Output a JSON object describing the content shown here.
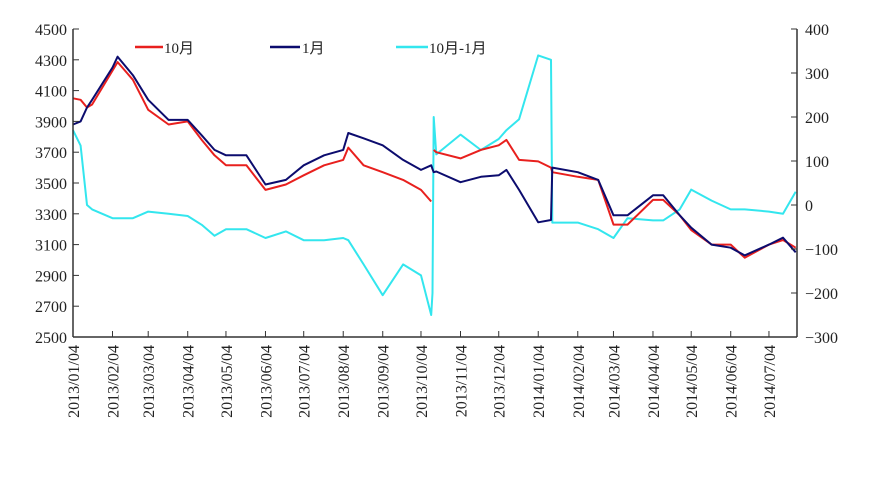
{
  "chart_data": {
    "type": "line",
    "title": "",
    "xlabel": "",
    "ylabel": "",
    "y2label": "",
    "ylim": [
      2500,
      4500
    ],
    "y2lim": [
      -300,
      400
    ],
    "xlim": [
      "2013-01-04",
      "2014-07-26"
    ],
    "grid": false,
    "legend_position": "top",
    "yticks": [
      2500,
      2700,
      2900,
      3100,
      3300,
      3500,
      3700,
      3900,
      4100,
      4300,
      4500
    ],
    "y2ticks": [
      -300,
      -200,
      -100,
      0,
      100,
      200,
      300,
      400
    ],
    "xtick_labels": [
      "2013/01/04",
      "2013/02/04",
      "2013/03/04",
      "2013/04/04",
      "2013/05/04",
      "2013/06/04",
      "2013/07/04",
      "2013/08/04",
      "2013/09/04",
      "2013/10/04",
      "2013/11/04",
      "2013/12/04",
      "2014/01/04",
      "2014/02/04",
      "2014/03/04",
      "2014/04/04",
      "2014/05/04",
      "2014/06/04",
      "2014/07/04"
    ],
    "x": [
      "2013-01-04",
      "2013-01-10",
      "2013-01-15",
      "2013-01-19",
      "2013-02-04",
      "2013-02-08",
      "2013-02-20",
      "2013-03-04",
      "2013-03-20",
      "2013-04-04",
      "2013-04-15",
      "2013-04-25",
      "2013-05-04",
      "2013-05-20",
      "2013-06-04",
      "2013-06-20",
      "2013-07-04",
      "2013-07-20",
      "2013-08-04",
      "2013-08-08",
      "2013-08-20",
      "2013-09-04",
      "2013-09-20",
      "2013-10-04",
      "2013-10-12",
      "2013-10-13",
      "2013-10-14",
      "2013-10-16",
      "2013-11-04",
      "2013-11-20",
      "2013-12-04",
      "2013-12-10",
      "2013-12-20",
      "2014-01-04",
      "2014-01-14",
      "2014-01-15",
      "2014-02-04",
      "2014-02-20",
      "2014-03-04",
      "2014-03-15",
      "2014-04-04",
      "2014-04-12",
      "2014-04-25",
      "2014-05-04",
      "2014-05-20",
      "2014-06-04",
      "2014-06-15",
      "2014-07-04",
      "2014-07-15",
      "2014-07-25"
    ],
    "series": [
      {
        "name": "10月",
        "axis": "left",
        "color": "#e8201e",
        "values": [
          4050,
          4040,
          3990,
          4010,
          4230,
          4285,
          4170,
          3975,
          3880,
          3900,
          3780,
          3680,
          3615,
          3615,
          3455,
          3490,
          3550,
          3615,
          3650,
          3730,
          3615,
          3570,
          3520,
          3455,
          3380,
          null,
          3715,
          3700,
          3660,
          3715,
          3745,
          3780,
          3650,
          3640,
          3600,
          3570,
          3540,
          3520,
          3230,
          3230,
          3390,
          3390,
          3290,
          3195,
          3100,
          3100,
          3015,
          3100,
          3130,
          3080
        ]
      },
      {
        "name": "1月",
        "axis": "left",
        "color": "#0c0c6e",
        "values": [
          3880,
          3900,
          3990,
          4040,
          4250,
          4320,
          4200,
          4040,
          3910,
          3910,
          3810,
          3715,
          3680,
          3680,
          3490,
          3520,
          3615,
          3680,
          3715,
          3825,
          3790,
          3745,
          3650,
          3585,
          3615,
          3590,
          3570,
          3575,
          3505,
          3540,
          3550,
          3585,
          3455,
          3245,
          3260,
          3600,
          3570,
          3520,
          3290,
          3290,
          3420,
          3420,
          3290,
          3210,
          3100,
          3080,
          3030,
          3100,
          3145,
          3050
        ]
      },
      {
        "name": "10月-1月",
        "axis": "right",
        "color": "#33e6ee",
        "values": [
          170,
          135,
          0,
          -10,
          -30,
          -30,
          -30,
          -15,
          -20,
          -25,
          -45,
          -70,
          -55,
          -55,
          -75,
          -60,
          -80,
          -80,
          -75,
          -80,
          -135,
          -205,
          -135,
          -160,
          -250,
          -200,
          200,
          115,
          160,
          125,
          150,
          170,
          195,
          340,
          330,
          -40,
          -40,
          -55,
          -75,
          -30,
          -35,
          -35,
          -10,
          35,
          10,
          -10,
          -10,
          -15,
          -20,
          30
        ]
      }
    ]
  }
}
